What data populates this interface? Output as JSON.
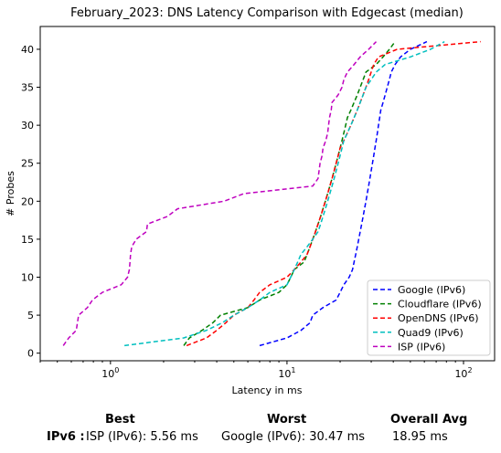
{
  "chart_data": {
    "type": "line",
    "title": "February_2023: DNS Latency Comparison with Edgecast (median)",
    "xlabel": "Latency in ms",
    "ylabel": "# Probes",
    "xscale": "log",
    "xlim": [
      0.4,
      150
    ],
    "ylim": [
      -1,
      43
    ],
    "xticks": [
      {
        "value": 1,
        "base": "10",
        "exp": "0"
      },
      {
        "value": 10,
        "base": "10",
        "exp": "1"
      },
      {
        "value": 100,
        "base": "10",
        "exp": "2"
      }
    ],
    "yticks": [
      0,
      5,
      10,
      15,
      20,
      25,
      30,
      35,
      40
    ],
    "grid": false,
    "legend_position": "bottom-right",
    "series": [
      {
        "name": "Google (IPv6)",
        "color": "#0000ff",
        "y": [
          1,
          2,
          3,
          4,
          5,
          6,
          7,
          8,
          9,
          10,
          11,
          12,
          13,
          14,
          15,
          16,
          17,
          18,
          19,
          20,
          21,
          22,
          23,
          24,
          25,
          26,
          27,
          28,
          29,
          30,
          31,
          32,
          33,
          34,
          35,
          36,
          37,
          38,
          39,
          40,
          41
        ],
        "x": [
          7.0,
          10.0,
          12.0,
          13.5,
          14.0,
          16.0,
          19.0,
          20.0,
          21.0,
          22.5,
          23.5,
          24.0,
          24.5,
          25.0,
          25.5,
          26.0,
          26.5,
          27.0,
          27.5,
          28.0,
          28.5,
          29.0,
          29.5,
          30.0,
          30.5,
          31.0,
          31.5,
          32.0,
          32.5,
          33.0,
          33.5,
          34.0,
          35.0,
          36.0,
          37.0,
          38.0,
          39.0,
          41.0,
          44.0,
          50.0,
          62.0
        ]
      },
      {
        "name": "Cloudflare (IPv6)",
        "color": "#008000",
        "y": [
          1,
          2,
          3,
          4,
          5,
          6,
          7,
          8,
          9,
          10,
          11,
          12,
          13,
          14,
          15,
          16,
          17,
          18,
          19,
          20,
          21,
          22,
          23,
          24,
          25,
          26,
          27,
          28,
          29,
          30,
          31,
          32,
          33,
          34,
          35,
          36,
          37,
          38,
          39,
          40,
          41
        ],
        "x": [
          2.6,
          2.8,
          3.3,
          3.8,
          4.2,
          6.0,
          7.0,
          9.0,
          10.0,
          10.5,
          11.0,
          12.5,
          13.0,
          13.5,
          14.0,
          14.5,
          15.0,
          15.5,
          16.0,
          16.5,
          17.0,
          17.5,
          18.0,
          18.5,
          19.0,
          19.5,
          20.0,
          20.5,
          21.0,
          21.5,
          22.0,
          23.0,
          24.0,
          25.0,
          26.0,
          27.0,
          28.0,
          32.0,
          35.0,
          38.0,
          41.0
        ]
      },
      {
        "name": "OpenDNS (IPv6)",
        "color": "#ff0000",
        "y": [
          1,
          2,
          3,
          4,
          5,
          6,
          7,
          8,
          9,
          10,
          11,
          12,
          13,
          14,
          15,
          16,
          17,
          18,
          19,
          20,
          21,
          22,
          23,
          24,
          25,
          26,
          27,
          28,
          29,
          30,
          31,
          32,
          33,
          34,
          35,
          36,
          37,
          38,
          39,
          40,
          41
        ],
        "x": [
          2.7,
          3.5,
          4.0,
          4.5,
          5.0,
          6.0,
          6.5,
          7.0,
          8.0,
          10.0,
          11.0,
          12.0,
          13.0,
          13.5,
          14.0,
          14.5,
          15.0,
          15.5,
          16.0,
          16.5,
          17.0,
          17.5,
          18.0,
          18.5,
          19.0,
          19.5,
          20.0,
          21.0,
          22.0,
          23.0,
          24.0,
          25.0,
          26.0,
          27.0,
          28.0,
          29.0,
          30.0,
          31.0,
          33.0,
          42.0,
          125.0
        ]
      },
      {
        "name": "Quad9 (IPv6)",
        "color": "#00bfbf",
        "y": [
          1,
          2,
          3,
          4,
          5,
          6,
          7,
          8,
          9,
          10,
          11,
          12,
          13,
          14,
          15,
          16,
          17,
          18,
          19,
          20,
          21,
          22,
          23,
          24,
          25,
          26,
          27,
          28,
          29,
          30,
          31,
          32,
          33,
          34,
          35,
          36,
          37,
          38,
          39,
          40,
          41
        ],
        "x": [
          1.2,
          2.6,
          3.5,
          4.3,
          5.0,
          6.0,
          7.0,
          8.0,
          10.0,
          10.5,
          11.0,
          11.5,
          12.0,
          13.0,
          14.0,
          15.0,
          15.5,
          16.0,
          16.5,
          17.0,
          17.5,
          18.0,
          18.5,
          19.0,
          19.5,
          20.0,
          20.5,
          21.0,
          22.0,
          23.0,
          24.0,
          25.0,
          26.0,
          27.0,
          28.0,
          30.0,
          32.0,
          36.0,
          50.0,
          65.0,
          78.0
        ]
      },
      {
        "name": "ISP (IPv6)",
        "color": "#bf00bf",
        "y": [
          1,
          2,
          3,
          4,
          5,
          6,
          7,
          8,
          9,
          10,
          11,
          12,
          13,
          14,
          15,
          16,
          17,
          18,
          19,
          20,
          21,
          22,
          23,
          24,
          25,
          26,
          27,
          28,
          29,
          30,
          31,
          32,
          33,
          34,
          35,
          36,
          37,
          38,
          39,
          40,
          41
        ],
        "x": [
          0.54,
          0.58,
          0.64,
          0.65,
          0.66,
          0.74,
          0.79,
          0.9,
          1.15,
          1.25,
          1.28,
          1.29,
          1.3,
          1.32,
          1.4,
          1.6,
          1.62,
          2.1,
          2.4,
          4.4,
          5.7,
          14.0,
          15.0,
          15.2,
          15.4,
          15.8,
          16.0,
          16.6,
          17.0,
          17.2,
          17.4,
          17.8,
          18.0,
          19.5,
          20.5,
          21.0,
          22.0,
          24.0,
          26.0,
          29.0,
          32.0
        ]
      }
    ]
  },
  "summary": {
    "best_label": "Best",
    "worst_label": "Worst",
    "avg_label": "Overall Avg",
    "row_label": "IPv6 :",
    "best_value": "ISP (IPv6): 5.56 ms",
    "worst_value": "Google (IPv6): 30.47 ms",
    "avg_value": "18.95 ms"
  }
}
